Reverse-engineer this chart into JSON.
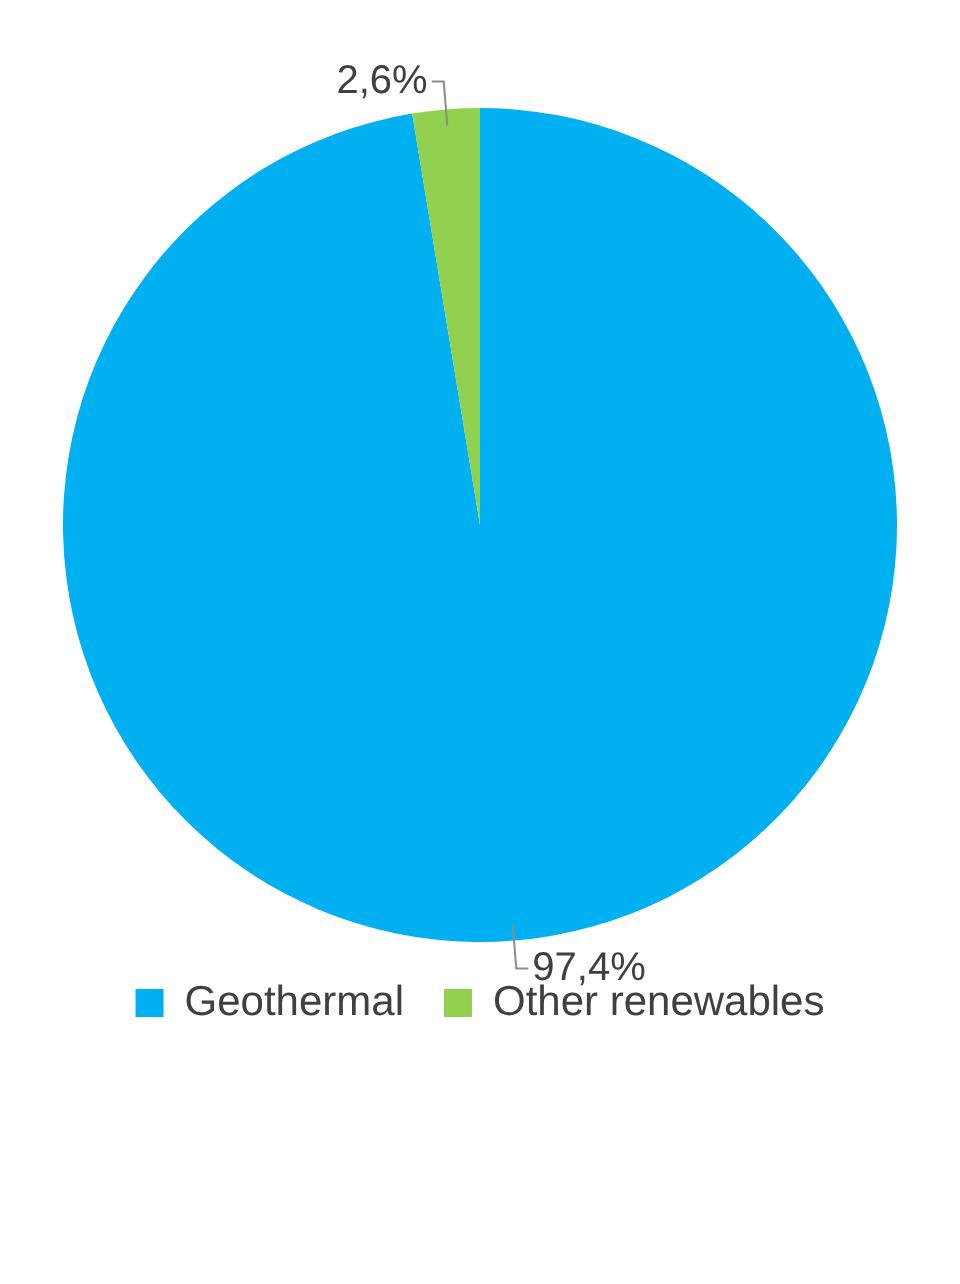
{
  "chart_data": {
    "type": "pie",
    "categories": [
      "Geothermal",
      "Other renewables"
    ],
    "values": [
      97.4,
      2.6
    ],
    "colors": [
      "#00b0f0",
      "#92d050"
    ],
    "value_labels": [
      "97,4%",
      "2,6%"
    ],
    "legend": "bottom"
  }
}
